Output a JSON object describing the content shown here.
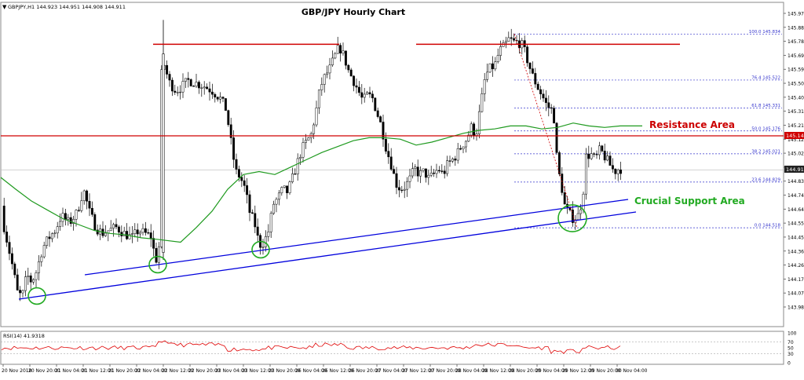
{
  "header": {
    "symbol_line": "GBPJPY,H1  144.923 144.951 144.908 144.911"
  },
  "chart_data": {
    "type": "candlestick",
    "title": "GBP/JPY Hourly Chart",
    "symbol": "GBPJPY",
    "timeframe": "H1",
    "ohlc_header": {
      "open": 144.923,
      "high": 144.951,
      "low": 144.908,
      "close": 144.911
    },
    "ylim": [
      143.98,
      146.07
    ],
    "price_ticks": [
      "145.975",
      "145.880",
      "145.785",
      "145.690",
      "145.595",
      "145.500",
      "145.405",
      "145.310",
      "145.215",
      "145.120",
      "145.025",
      "144.930",
      "144.835",
      "144.740",
      "144.645",
      "144.550",
      "144.455",
      "144.360",
      "144.265",
      "144.170",
      "144.075",
      "143.980"
    ],
    "x_ticks": [
      "20 Nov 2018",
      "20 Nov 20:00",
      "21 Nov 04:00",
      "21 Nov 12:00",
      "21 Nov 20:00",
      "22 Nov 04:00",
      "22 Nov 12:00",
      "22 Nov 20:00",
      "23 Nov 04:00",
      "23 Nov 12:00",
      "23 Nov 20:00",
      "26 Nov 04:00",
      "26 Nov 12:00",
      "26 Nov 20:00",
      "27 Nov 04:00",
      "27 Nov 12:00",
      "27 Nov 20:00",
      "28 Nov 04:00",
      "28 Nov 12:00",
      "28 Nov 20:00",
      "29 Nov 04:00",
      "29 Nov 12:00",
      "29 Nov 20:00",
      "30 Nov 04:00"
    ],
    "price_label": "144.911",
    "resistance_label_price": "145.143",
    "annotations": {
      "resistance": "Resistance Area",
      "support": "Crucial Support Area"
    },
    "fibonacci": [
      {
        "label": "100.0 145.834",
        "value": 145.834
      },
      {
        "label": "76.4 145.522",
        "value": 145.522
      },
      {
        "label": "61.8 145.331",
        "value": 145.331
      },
      {
        "label": "50.0 145.176",
        "value": 145.176
      },
      {
        "label": "38.2 145.021",
        "value": 145.021
      },
      {
        "label": "23.6 144.829",
        "value": 144.829
      },
      {
        "label": "0.0 144.518",
        "value": 144.518
      }
    ],
    "rsi": {
      "label": "RSI(14) 41.9318",
      "period": 14,
      "value": 41.9318,
      "ticks": [
        "100",
        "70",
        "50",
        "30",
        "0"
      ]
    },
    "colors": {
      "bull_candle": "#ffffff",
      "bear_candle": "#000000",
      "moving_average": "#1f9a1f",
      "horizontal_levels": "#d00000",
      "trendlines": "#0000dd",
      "fib_lines": "#3333cc",
      "rsi_line": "#e00000",
      "annotation_green": "#22aa22",
      "annotation_red": "#cc0000"
    }
  }
}
